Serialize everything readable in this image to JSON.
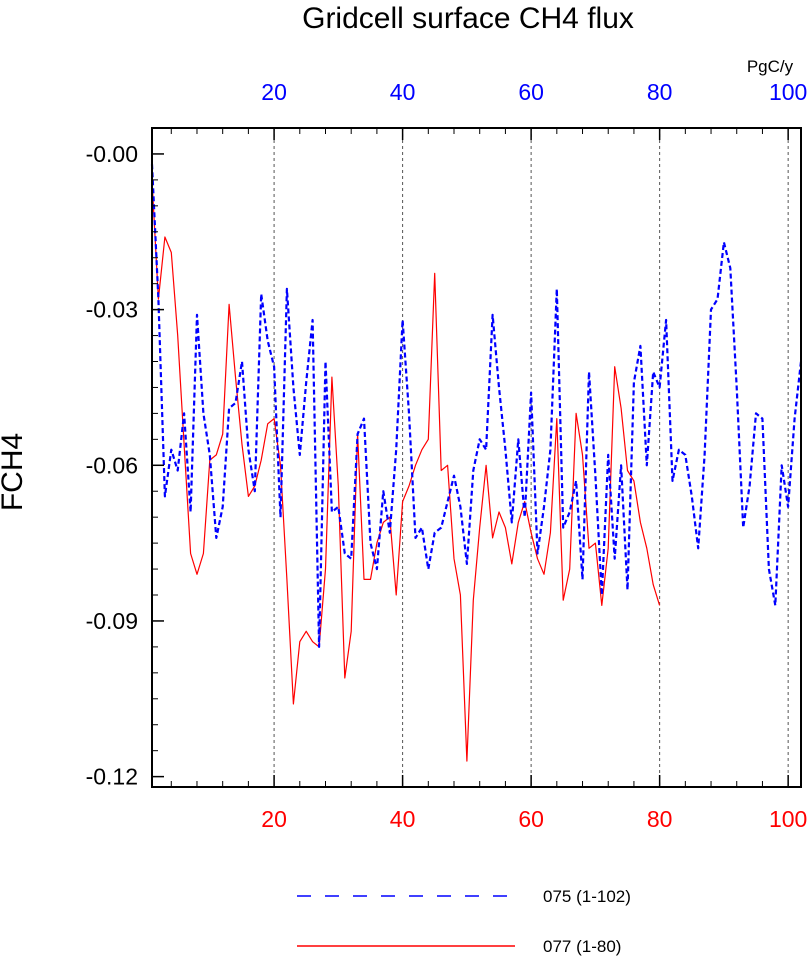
{
  "chart_data": {
    "type": "line",
    "title": "Gridcell surface CH4 flux",
    "ylabel": "FCH4",
    "top_axis_unit": "PgC/y",
    "grid": "vertical dashed",
    "legend_position": "bottom",
    "xlim": [
      1,
      102
    ],
    "ylim": [
      -0.122,
      0.005
    ],
    "y_ticks": [
      "-0.00",
      "-0.03",
      "-0.06",
      "-0.09",
      "-0.12"
    ],
    "y_tick_values": [
      0,
      -0.03,
      -0.06,
      -0.09,
      -0.12
    ],
    "x_ticks_bottom": [
      "20",
      "40",
      "60",
      "80",
      "100"
    ],
    "x_ticks_top": [
      "20",
      "40",
      "60",
      "80",
      "100"
    ],
    "x_tick_values": [
      20,
      40,
      60,
      80,
      100
    ],
    "series": [
      {
        "name": "075 (1-102)",
        "color": "#0000ff",
        "style": "dashed",
        "x_start": 1,
        "values": [
          -0.002,
          -0.028,
          -0.066,
          -0.057,
          -0.061,
          -0.05,
          -0.069,
          -0.031,
          -0.05,
          -0.058,
          -0.074,
          -0.068,
          -0.049,
          -0.048,
          -0.04,
          -0.057,
          -0.065,
          -0.027,
          -0.036,
          -0.041,
          -0.07,
          -0.026,
          -0.045,
          -0.058,
          -0.044,
          -0.032,
          -0.095,
          -0.04,
          -0.069,
          -0.068,
          -0.077,
          -0.078,
          -0.054,
          -0.051,
          -0.075,
          -0.08,
          -0.065,
          -0.073,
          -0.057,
          -0.032,
          -0.05,
          -0.074,
          -0.072,
          -0.08,
          -0.073,
          -0.072,
          -0.067,
          -0.062,
          -0.068,
          -0.079,
          -0.061,
          -0.055,
          -0.057,
          -0.031,
          -0.045,
          -0.057,
          -0.071,
          -0.055,
          -0.07,
          -0.046,
          -0.077,
          -0.068,
          -0.057,
          -0.026,
          -0.072,
          -0.069,
          -0.063,
          -0.082,
          -0.042,
          -0.062,
          -0.085,
          -0.058,
          -0.078,
          -0.06,
          -0.084,
          -0.044,
          -0.037,
          -0.06,
          -0.042,
          -0.045,
          -0.032,
          -0.063,
          -0.057,
          -0.058,
          -0.066,
          -0.076,
          -0.058,
          -0.03,
          -0.028,
          -0.017,
          -0.022,
          -0.045,
          -0.072,
          -0.064,
          -0.05,
          -0.051,
          -0.08,
          -0.087,
          -0.06,
          -0.068,
          -0.051,
          -0.04
        ]
      },
      {
        "name": "077 (1-80)",
        "color": "#ff0000",
        "style": "solid",
        "x_start": 1,
        "values": [
          -0.005,
          -0.028,
          -0.016,
          -0.019,
          -0.035,
          -0.056,
          -0.077,
          -0.081,
          -0.077,
          -0.059,
          -0.058,
          -0.054,
          -0.029,
          -0.043,
          -0.056,
          -0.066,
          -0.064,
          -0.059,
          -0.052,
          -0.051,
          -0.06,
          -0.082,
          -0.106,
          -0.094,
          -0.092,
          -0.094,
          -0.095,
          -0.08,
          -0.043,
          -0.064,
          -0.101,
          -0.092,
          -0.054,
          -0.082,
          -0.082,
          -0.075,
          -0.071,
          -0.07,
          -0.085,
          -0.067,
          -0.064,
          -0.06,
          -0.057,
          -0.055,
          -0.023,
          -0.061,
          -0.06,
          -0.078,
          -0.085,
          -0.117,
          -0.086,
          -0.072,
          -0.06,
          -0.074,
          -0.069,
          -0.072,
          -0.079,
          -0.071,
          -0.067,
          -0.073,
          -0.078,
          -0.081,
          -0.073,
          -0.051,
          -0.086,
          -0.08,
          -0.05,
          -0.058,
          -0.076,
          -0.075,
          -0.087,
          -0.076,
          -0.041,
          -0.049,
          -0.061,
          -0.063,
          -0.071,
          -0.076,
          -0.083,
          -0.087
        ]
      }
    ]
  }
}
